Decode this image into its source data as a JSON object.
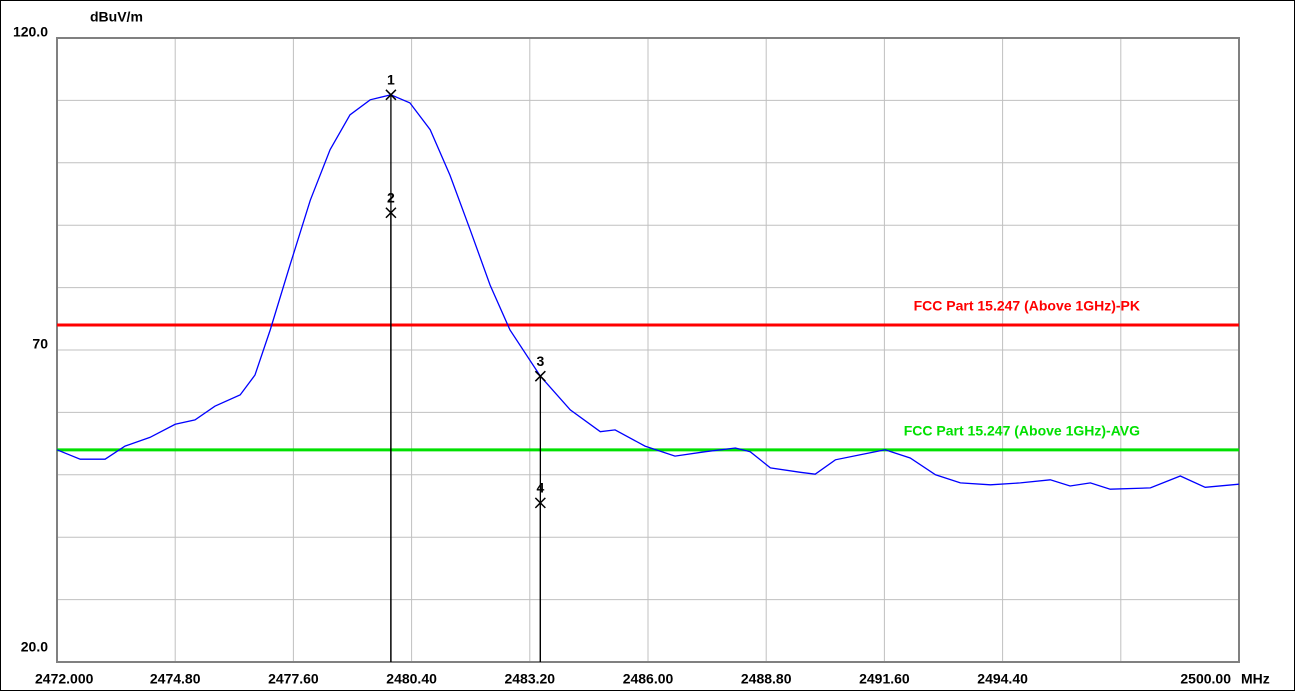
{
  "chart_data": {
    "type": "line",
    "y_unit_label": "dBuV/m",
    "x_unit_label": "MHz",
    "xlim": [
      2472,
      2500
    ],
    "ylim": [
      20,
      120
    ],
    "grid": true,
    "xticks": [
      {
        "value": 2472,
        "label": "2472.000"
      },
      {
        "value": 2474.8,
        "label": "2474.80"
      },
      {
        "value": 2477.6,
        "label": "2477.60"
      },
      {
        "value": 2480.4,
        "label": "2480.40"
      },
      {
        "value": 2483.2,
        "label": "2483.20"
      },
      {
        "value": 2486,
        "label": "2486.00"
      },
      {
        "value": 2488.8,
        "label": "2488.80"
      },
      {
        "value": 2491.6,
        "label": "2491.60"
      },
      {
        "value": 2494.4,
        "label": "2494.40"
      },
      {
        "value": 2497.2
      },
      {
        "value": 2500,
        "label": "2500.00"
      }
    ],
    "yticks": [
      {
        "value": 20,
        "label": "20.0"
      },
      {
        "value": 30
      },
      {
        "value": 40
      },
      {
        "value": 50
      },
      {
        "value": 60
      },
      70,
      {
        "value": 80
      },
      {
        "value": 90
      },
      {
        "value": 100
      },
      {
        "value": 110
      },
      {
        "value": 120,
        "label": "120.0"
      }
    ],
    "series": [
      {
        "color": "#0000ff",
        "x": [
          2472.0,
          2472.55,
          2473.14,
          2473.61,
          2474.2,
          2474.8,
          2475.27,
          2475.74,
          2476.34,
          2476.69,
          2477.05,
          2477.52,
          2478.0,
          2478.47,
          2478.94,
          2479.42,
          2479.91,
          2480.36,
          2480.84,
          2481.31,
          2481.79,
          2482.26,
          2482.73,
          2483.45,
          2484.16,
          2484.87,
          2485.22,
          2485.93,
          2486.64,
          2487.36,
          2488.07,
          2488.42,
          2488.9,
          2489.61,
          2489.96,
          2490.44,
          2491.03,
          2491.62,
          2492.21,
          2492.81,
          2493.4,
          2494.11,
          2494.82,
          2495.53,
          2496.0,
          2496.48,
          2496.95,
          2497.9,
          2498.61,
          2499.2,
          2500.0
        ],
        "values": [
          54.0,
          52.5,
          52.5,
          54.6,
          56.0,
          58.1,
          58.8,
          61.0,
          62.8,
          66.0,
          73.2,
          83.6,
          94.0,
          102.1,
          107.7,
          110.1,
          110.9,
          109.6,
          105.3,
          98.0,
          89.2,
          80.4,
          73.2,
          65.8,
          60.4,
          56.9,
          57.2,
          54.6,
          53.0,
          53.7,
          54.3,
          53.7,
          51.1,
          50.4,
          50.1,
          52.4,
          53.2,
          54.0,
          52.7,
          50.0,
          48.7,
          48.4,
          48.7,
          49.2,
          48.2,
          48.7,
          47.7,
          47.9,
          49.8,
          48.0,
          48.5
        ]
      }
    ],
    "limits": [
      {
        "name": "FCC Part 15.247 (Above 1GHz)-PK",
        "color": "#ff0000",
        "value": 74
      },
      {
        "name": "FCC Part 15.247 (Above 1GHz)-AVG",
        "color": "#00e000",
        "value": 54
      }
    ],
    "markers": {
      "labels": [
        "1",
        "2",
        "3",
        "4"
      ],
      "x": [
        2479.91,
        2479.91,
        2483.45,
        2483.45
      ],
      "y": [
        110.9,
        92.0,
        65.8,
        45.5
      ]
    }
  }
}
